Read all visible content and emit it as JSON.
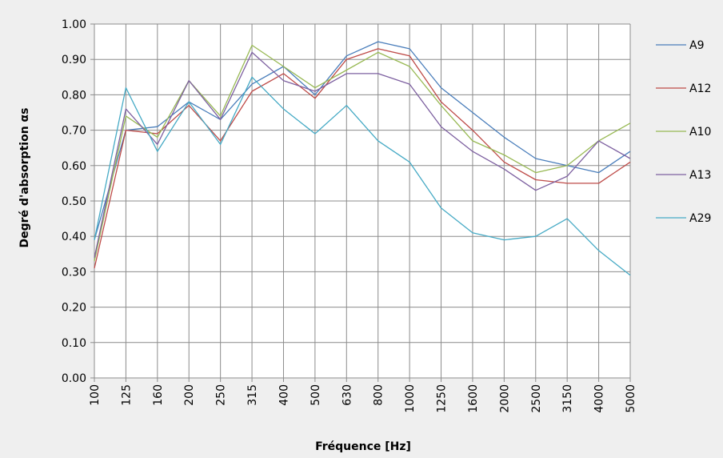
{
  "chart_data": {
    "type": "line",
    "title": "",
    "xlabel": "Fréquence [Hz]",
    "ylabel": "Degré d'absorption  αs",
    "categories": [
      "100",
      "125",
      "160",
      "200",
      "250",
      "315",
      "400",
      "500",
      "630",
      "800",
      "1000",
      "1250",
      "1600",
      "2000",
      "2500",
      "3150",
      "4000",
      "5000"
    ],
    "ylim": [
      0,
      1
    ],
    "yticks": [
      "0.00",
      "0.10",
      "0.20",
      "0.30",
      "0.40",
      "0.50",
      "0.60",
      "0.70",
      "0.80",
      "0.90",
      "1.00"
    ],
    "grid": true,
    "legend_position": "right",
    "series": [
      {
        "name": "A9",
        "color": "#4a7ebb",
        "values": [
          0.39,
          0.7,
          0.71,
          0.78,
          0.73,
          0.83,
          0.88,
          0.8,
          0.91,
          0.95,
          0.93,
          0.82,
          0.75,
          0.68,
          0.62,
          0.6,
          0.58,
          0.64
        ]
      },
      {
        "name": "A12",
        "color": "#be4b48",
        "values": [
          0.31,
          0.7,
          0.69,
          0.77,
          0.67,
          0.81,
          0.86,
          0.79,
          0.9,
          0.93,
          0.91,
          0.78,
          0.7,
          0.61,
          0.56,
          0.55,
          0.55,
          0.61
        ]
      },
      {
        "name": "A10",
        "color": "#98b954",
        "values": [
          0.33,
          0.74,
          0.68,
          0.84,
          0.74,
          0.94,
          0.88,
          0.82,
          0.87,
          0.92,
          0.88,
          0.77,
          0.67,
          0.63,
          0.58,
          0.6,
          0.67,
          0.72
        ]
      },
      {
        "name": "A13",
        "color": "#7d60a0",
        "values": [
          0.34,
          0.76,
          0.66,
          0.84,
          0.73,
          0.92,
          0.84,
          0.81,
          0.86,
          0.86,
          0.83,
          0.71,
          0.64,
          0.59,
          0.53,
          0.57,
          0.67,
          0.62
        ]
      },
      {
        "name": "A29",
        "color": "#46aac5",
        "values": [
          0.39,
          0.82,
          0.64,
          0.78,
          0.66,
          0.85,
          0.76,
          0.69,
          0.77,
          0.67,
          0.61,
          0.48,
          0.41,
          0.39,
          0.4,
          0.45,
          0.36,
          0.29
        ]
      }
    ]
  }
}
